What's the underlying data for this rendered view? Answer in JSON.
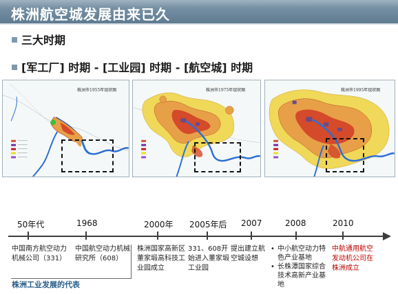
{
  "slide": {
    "title": "株洲航空城发展由来已久",
    "bullet1": "三大时期",
    "bullet2": "[军工厂] 时期 - [工业园] 时期 - [航空城] 时期"
  },
  "maps": [
    {
      "label": "株洲市1955年现状图"
    },
    {
      "label": "株洲市1975年现状图"
    },
    {
      "label": "株洲市1995年现状图"
    }
  ],
  "timeline": {
    "events": [
      {
        "year": "50年代",
        "desc": "中国南方航空动力机械公司（331）"
      },
      {
        "year": "1968",
        "desc": "中国航空动力机械研究所（608）"
      },
      {
        "year": "2000年",
        "desc": "株洲国家高新区董家塅高科技工业园成立"
      },
      {
        "year": "2005年后",
        "desc": "331、608开始进入董家塅工业园"
      },
      {
        "year": "2007",
        "desc": "提出建立航空城设想"
      },
      {
        "year": "2008",
        "items": [
          "中小航空动力特色产业基地",
          "长株潭国家综合技术高新产业基地"
        ]
      },
      {
        "year": "2010",
        "desc": "中航通用航空发动机公司在株洲成立"
      }
    ],
    "group_label": "株洲工业发展的代表",
    "highlight_color": "#c00000"
  },
  "colors": {
    "title_bar": "#7f99ac",
    "river": "#2b6fd6",
    "urban": "#e8a048",
    "core": "#d44a2a",
    "suburb": "#f0d858"
  }
}
